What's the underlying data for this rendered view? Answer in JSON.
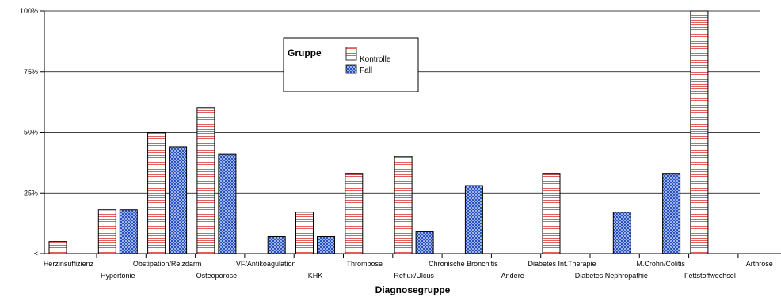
{
  "chart_data": {
    "type": "bar",
    "xlabel": "Diagnosegruppe",
    "ylabel": "",
    "ylim": [
      0,
      100
    ],
    "grid": true,
    "legend_position": "top-center",
    "y_ticks": [
      "<",
      "25%",
      "50%",
      "75%",
      "100%"
    ],
    "legend_title": "Gruppe",
    "categories": [
      "Herzinsuffizienz",
      "Hypertonie",
      "Obstipation/Reizdarm",
      "Osteoporose",
      "VF/Antikoagulation",
      "KHK",
      "Thrombose",
      "Reflux/Ulcus",
      "Chronische Bronchitis",
      "Andere",
      "Diabetes Int.Therapie",
      "Diabetes Nephropathie",
      "M.Crohn/Colitis",
      "Fettstoffwechsel",
      "Arthrose"
    ],
    "series": [
      {
        "name": "Kontrolle",
        "color": "#e06060",
        "values": [
          5,
          18,
          50,
          60,
          0,
          17,
          33,
          40,
          0,
          0,
          33,
          0,
          0,
          100,
          0
        ]
      },
      {
        "name": "Fall",
        "color": "#2a52be",
        "values": [
          0,
          18,
          44,
          41,
          7,
          7,
          0,
          9,
          28,
          0,
          0,
          17,
          33,
          0,
          0
        ]
      }
    ]
  }
}
